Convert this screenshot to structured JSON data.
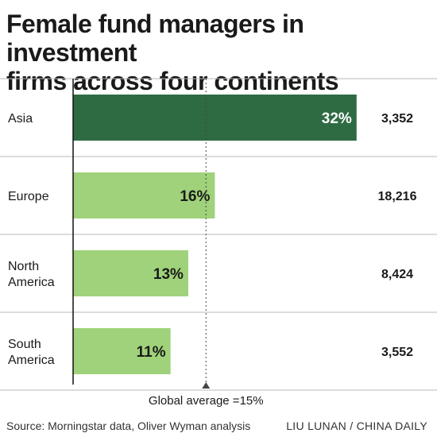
{
  "title_lines": [
    "Female fund managers in investment",
    "firms across four continents"
  ],
  "source": "Source: Morningstar data, Oliver Wyman analysis",
  "credit": "LIU LUNAN / CHINA DAILY",
  "colors": {
    "highlight_bar": "#2e6b43",
    "bar": "#9fd27a",
    "rule": "#b8b8b8",
    "text": "#1a1a1a",
    "label_on_dark": "#ffffff"
  },
  "chart_data": {
    "type": "bar",
    "orientation": "horizontal",
    "title": "Female fund managers in investment firms across four continents",
    "categories": [
      "Asia",
      "Europe",
      "North America",
      "South America"
    ],
    "category_lines": [
      [
        "Asia"
      ],
      [
        "Europe"
      ],
      [
        "North",
        "America"
      ],
      [
        "South",
        "America"
      ]
    ],
    "values": [
      32,
      16,
      13,
      11
    ],
    "value_labels": [
      "32%",
      "16%",
      "13%",
      "11%"
    ],
    "counts": [
      "3,352",
      "18,216",
      "8,424",
      "3,552"
    ],
    "highlight_index": 0,
    "xlim": [
      0,
      35
    ],
    "reference_line": {
      "value": 15,
      "label": "Global average =15%"
    },
    "grid": false,
    "legend": "none"
  }
}
